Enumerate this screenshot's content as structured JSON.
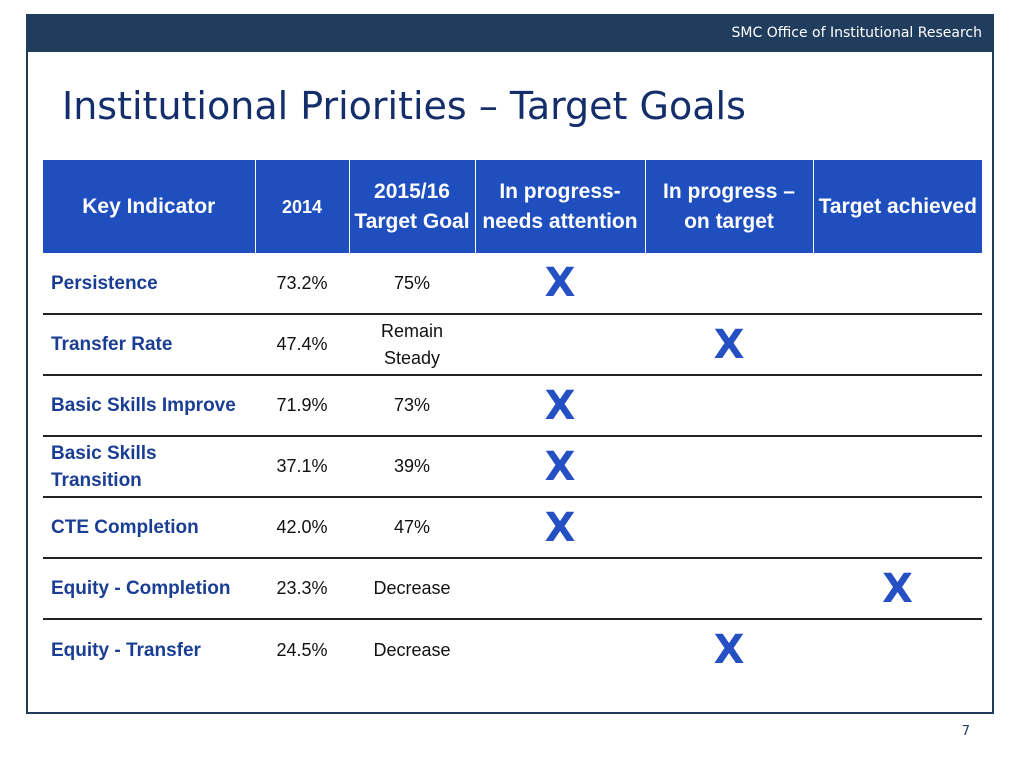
{
  "header": {
    "org": "SMC Office of Institutional Research"
  },
  "title": "Institutional Priorities – Target Goals",
  "table": {
    "columns": [
      "Key Indicator",
      "2014",
      "2015/16 Target Goal",
      "In progress- needs attention",
      "In progress – on target",
      "Target achieved"
    ],
    "mark_symbol": "X",
    "rows": [
      {
        "indicator": "Persistence",
        "y2014": "73.2%",
        "target": "75%",
        "needs_attention": "X",
        "on_target": "",
        "achieved": ""
      },
      {
        "indicator": "Transfer Rate",
        "y2014": "47.4%",
        "target": "Remain Steady",
        "needs_attention": "",
        "on_target": "X",
        "achieved": ""
      },
      {
        "indicator": "Basic Skills Improve",
        "y2014": "71.9%",
        "target": "73%",
        "needs_attention": "X",
        "on_target": "",
        "achieved": ""
      },
      {
        "indicator": "Basic Skills Transition",
        "y2014": "37.1%",
        "target": "39%",
        "needs_attention": "X",
        "on_target": "",
        "achieved": ""
      },
      {
        "indicator": "CTE Completion",
        "y2014": "42.0%",
        "target": "47%",
        "needs_attention": "X",
        "on_target": "",
        "achieved": ""
      },
      {
        "indicator": "Equity - Completion",
        "y2014": "23.3%",
        "target": "Decrease",
        "needs_attention": "",
        "on_target": "",
        "achieved": "X"
      },
      {
        "indicator": "Equity - Transfer",
        "y2014": "24.5%",
        "target": "Decrease",
        "needs_attention": "",
        "on_target": "X",
        "achieved": ""
      }
    ]
  },
  "footer": {
    "page_number": "7"
  },
  "colors": {
    "header_bar": "#203d5e",
    "title": "#142d6b",
    "table_header": "#1f4fbf",
    "indicator_text": "#1a3e94",
    "mark": "#2550c4"
  }
}
